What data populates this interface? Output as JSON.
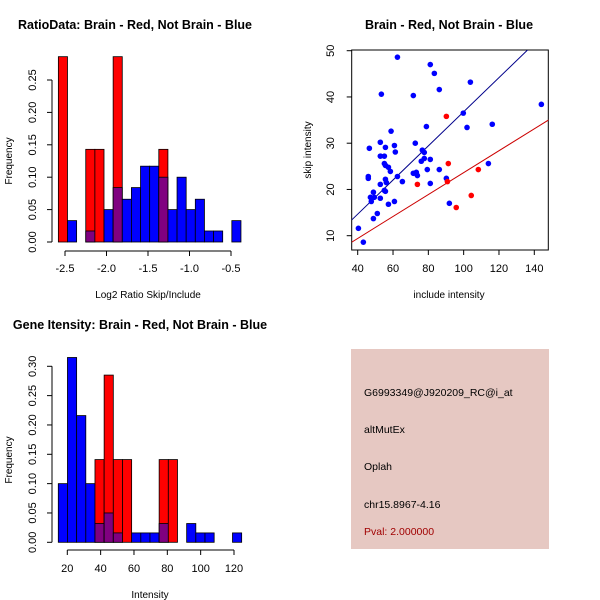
{
  "colors": {
    "brain": "#ff0000",
    "not_brain": "#0000ff",
    "overlap": "#800080",
    "info_bg": "#e6c8c2",
    "pval": "#a00000",
    "brain_line": "#cc0000",
    "not_brain_line": "#00008b"
  },
  "chart_data": [
    {
      "type": "bar",
      "title": "RatioData: Brain - Red, Not Brain - Blue",
      "xlabel": "Log2 Ratio Skip/Include",
      "ylabel": "Frequency",
      "xticks": [
        "-2.5",
        "-2.0",
        "-1.5",
        "-1.0",
        "-0.5"
      ],
      "xtick_values": [
        -2.5,
        -2.0,
        -1.5,
        -1.0,
        -0.5
      ],
      "yticks": [
        "0.00",
        "0.05",
        "0.10",
        "0.15",
        "0.20",
        "0.25"
      ],
      "ytick_values": [
        0,
        0.05,
        0.1,
        0.15,
        0.2,
        0.25
      ],
      "bin_start": -2.58,
      "bin_width": 0.11,
      "series": [
        {
          "name": "Brain",
          "color": "red",
          "values": [
            0.286,
            0,
            0,
            0.143,
            0.143,
            0,
            0.286,
            0,
            0,
            0,
            0,
            0.143,
            0,
            0,
            0,
            0,
            0,
            0,
            0,
            0
          ]
        },
        {
          "name": "Not Brain",
          "color": "blue",
          "values": [
            0,
            0.033,
            0,
            0.017,
            0,
            0.05,
            0.084,
            0.066,
            0.084,
            0.117,
            0.117,
            0.1,
            0.05,
            0.1,
            0.05,
            0.066,
            0.017,
            0.017,
            0,
            0.033
          ]
        }
      ]
    },
    {
      "type": "scatter",
      "title": "Brain - Red, Not Brain - Blue",
      "xlabel": "include intensity",
      "ylabel": "skip intensity",
      "xlim": [
        36.6,
        148.2
      ],
      "ylim": [
        6.9,
        50.1
      ],
      "xticks": [
        "40",
        "60",
        "80",
        "100",
        "120",
        "140"
      ],
      "xtick_values": [
        40,
        60,
        80,
        100,
        120,
        140
      ],
      "yticks": [
        "10",
        "20",
        "30",
        "40",
        "50"
      ],
      "ytick_values": [
        10,
        20,
        30,
        40,
        50
      ],
      "series": [
        {
          "name": "Not Brain",
          "color": "blue",
          "points": [
            [
              40.4,
              11.6
            ],
            [
              43.2,
              8.6
            ],
            [
              62.5,
              48.6
            ],
            [
              81.1,
              47.0
            ],
            [
              83.4,
              45.1
            ],
            [
              53.4,
              40.6
            ],
            [
              71.5,
              40.3
            ],
            [
              86.2,
              41.6
            ],
            [
              103.8,
              43.2
            ],
            [
              99.8,
              36.5
            ],
            [
              144,
              38.4
            ],
            [
              101.9,
              33.4
            ],
            [
              116.2,
              34.1
            ],
            [
              78.9,
              33.6
            ],
            [
              58.9,
              32.6
            ],
            [
              52.8,
              30.2
            ],
            [
              46.6,
              28.9
            ],
            [
              55.7,
              29.1
            ],
            [
              60.8,
              29.5
            ],
            [
              72.6,
              30.0
            ],
            [
              61.3,
              28.1
            ],
            [
              52.8,
              27.2
            ],
            [
              55.1,
              27.2
            ],
            [
              76.6,
              28.5
            ],
            [
              77.7,
              28.0
            ],
            [
              55.1,
              25.6
            ],
            [
              55.7,
              25.2
            ],
            [
              57.4,
              24.8
            ],
            [
              58.5,
              23.9
            ],
            [
              76,
              26.1
            ],
            [
              77.7,
              26.7
            ],
            [
              81.1,
              26.5
            ],
            [
              114,
              25.6
            ],
            [
              46,
              22.8
            ],
            [
              46,
              22.4
            ],
            [
              55.7,
              22.2
            ],
            [
              56.2,
              21.5
            ],
            [
              62.5,
              22.8
            ],
            [
              65.3,
              21.7
            ],
            [
              71.5,
              23.5
            ],
            [
              73.2,
              23.7
            ],
            [
              73.8,
              23.0
            ],
            [
              79.4,
              24.3
            ],
            [
              86.2,
              24.3
            ],
            [
              52.8,
              21.1
            ],
            [
              81.1,
              21.3
            ],
            [
              90.2,
              22.4
            ],
            [
              48.9,
              19.4
            ],
            [
              55.1,
              19.8
            ],
            [
              55.7,
              19.6
            ],
            [
              47.2,
              18.3
            ],
            [
              49.4,
              18.3
            ],
            [
              52.8,
              18.1
            ],
            [
              47.7,
              17.4
            ],
            [
              60.8,
              17.4
            ],
            [
              57.4,
              16.8
            ],
            [
              91.9,
              17.0
            ],
            [
              51.1,
              14.8
            ],
            [
              48.9,
              13.7
            ]
          ],
          "fit_line": {
            "slope": 0.369,
            "intercept": -0.1
          }
        },
        {
          "name": "Brain",
          "color": "red",
          "points": [
            [
              90.2,
              35.8
            ],
            [
              91.3,
              25.6
            ],
            [
              73.8,
              21.1
            ],
            [
              108.3,
              24.3
            ],
            [
              104.3,
              18.7
            ],
            [
              95.8,
              16.1
            ],
            [
              90.8,
              21.7
            ]
          ],
          "fit_line": {
            "slope": 0.237,
            "intercept": -0.07
          }
        }
      ]
    },
    {
      "type": "bar",
      "title": "Gene Itensity: Brain - Red, Not Brain - Blue",
      "xlabel": "Intensity",
      "ylabel": "Frequency",
      "xticks": [
        "20",
        "40",
        "60",
        "80",
        "100",
        "120"
      ],
      "xtick_values": [
        20,
        40,
        60,
        80,
        100,
        120
      ],
      "yticks": [
        "0.00",
        "0.05",
        "0.10",
        "0.15",
        "0.20",
        "0.25",
        "0.30"
      ],
      "ytick_values": [
        0,
        0.05,
        0.1,
        0.15,
        0.2,
        0.25,
        0.3
      ],
      "bin_start": 14.6,
      "bin_width": 5.5,
      "series": [
        {
          "name": "Brain",
          "color": "red",
          "values": [
            0,
            0,
            0,
            0,
            0.141,
            0.285,
            0.141,
            0.141,
            0,
            0,
            0,
            0.141,
            0.141,
            0,
            0,
            0,
            0,
            0,
            0,
            0
          ]
        },
        {
          "name": "Not Brain",
          "color": "blue",
          "values": [
            0.1,
            0.315,
            0.216,
            0.1,
            0.032,
            0.05,
            0.016,
            0,
            0.016,
            0.016,
            0.016,
            0.032,
            0,
            0,
            0.032,
            0.016,
            0.016,
            0,
            0,
            0.016
          ]
        }
      ]
    }
  ],
  "info": {
    "probe": "G6993349@J920209_RC@i_at",
    "event_type": "altMutEx",
    "gene": "Oplah",
    "location": "chr15.8967-4.16",
    "pval": "Pval: 2.000000"
  }
}
